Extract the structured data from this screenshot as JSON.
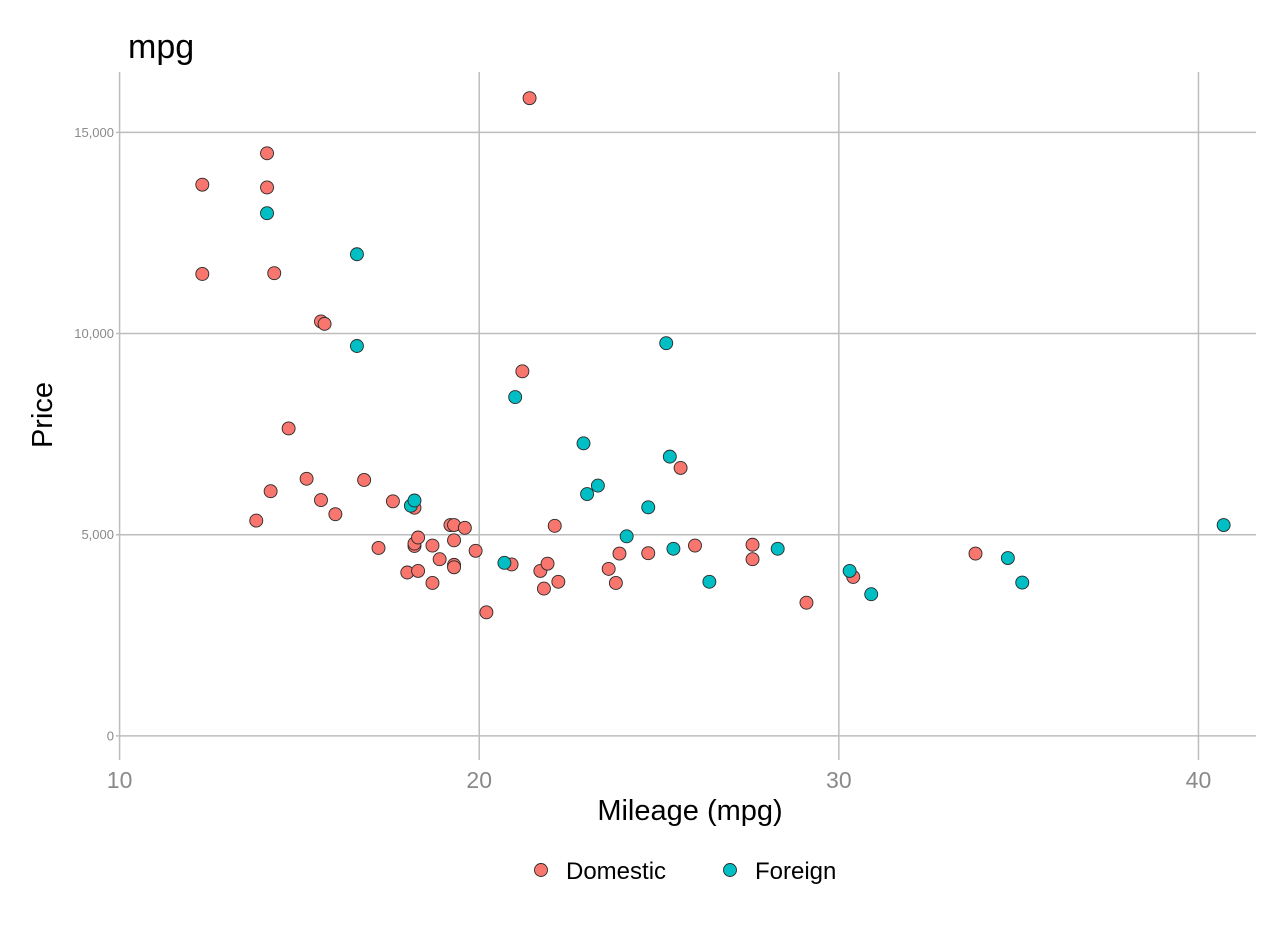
{
  "chart_data": {
    "type": "scatter",
    "title": "mpg",
    "xlabel": "Mileage (mpg)",
    "ylabel": "Price",
    "xlim": [
      9.9,
      41.6
    ],
    "ylim": [
      -600,
      16500
    ],
    "x_ticks": [
      10,
      20,
      30,
      40
    ],
    "x_tick_labels": [
      "10",
      "20",
      "30",
      "40"
    ],
    "y_ticks": [
      0,
      5000,
      10000,
      15000
    ],
    "y_tick_labels": [
      "0",
      "5,000",
      "10,000",
      "15,000"
    ],
    "grid": true,
    "legend_position": "bottom",
    "series": [
      {
        "name": "Domestic",
        "color": "#F8766D",
        "points": [
          [
            12.3,
            13700
          ],
          [
            12.3,
            11480
          ],
          [
            13.8,
            5350
          ],
          [
            14.1,
            14480
          ],
          [
            14.1,
            13630
          ],
          [
            14.2,
            6080
          ],
          [
            14.3,
            11500
          ],
          [
            14.7,
            7640
          ],
          [
            15.2,
            6390
          ],
          [
            15.6,
            5860
          ],
          [
            15.6,
            10300
          ],
          [
            15.7,
            10240
          ],
          [
            16.0,
            5510
          ],
          [
            16.8,
            6360
          ],
          [
            17.2,
            4670
          ],
          [
            17.6,
            5830
          ],
          [
            18.0,
            4060
          ],
          [
            18.2,
            5670
          ],
          [
            18.2,
            4720
          ],
          [
            18.2,
            4780
          ],
          [
            18.3,
            4930
          ],
          [
            18.3,
            4100
          ],
          [
            18.7,
            4730
          ],
          [
            18.7,
            3800
          ],
          [
            18.9,
            4390
          ],
          [
            19.2,
            5240
          ],
          [
            19.3,
            5240
          ],
          [
            19.3,
            4860
          ],
          [
            19.3,
            4250
          ],
          [
            19.3,
            4190
          ],
          [
            19.6,
            5170
          ],
          [
            19.9,
            4600
          ],
          [
            20.2,
            3070
          ],
          [
            20.9,
            4260
          ],
          [
            21.2,
            9060
          ],
          [
            21.4,
            15850
          ],
          [
            21.7,
            4100
          ],
          [
            21.8,
            3660
          ],
          [
            21.9,
            4280
          ],
          [
            22.1,
            5220
          ],
          [
            22.2,
            3830
          ],
          [
            23.6,
            4150
          ],
          [
            23.8,
            3800
          ],
          [
            23.9,
            4530
          ],
          [
            24.7,
            4540
          ],
          [
            25.6,
            6660
          ],
          [
            26.0,
            4730
          ],
          [
            27.6,
            4750
          ],
          [
            27.6,
            4390
          ],
          [
            29.1,
            3310
          ],
          [
            30.4,
            3950
          ],
          [
            33.8,
            4530
          ]
        ]
      },
      {
        "name": "Foreign",
        "color": "#00BFC4",
        "points": [
          [
            14.1,
            12990
          ],
          [
            16.6,
            11970
          ],
          [
            16.6,
            9690
          ],
          [
            18.1,
            5720
          ],
          [
            18.2,
            5850
          ],
          [
            20.7,
            4300
          ],
          [
            21.0,
            8420
          ],
          [
            22.9,
            7270
          ],
          [
            23.0,
            6010
          ],
          [
            23.3,
            6220
          ],
          [
            24.1,
            4960
          ],
          [
            24.7,
            5680
          ],
          [
            25.2,
            9760
          ],
          [
            25.3,
            6940
          ],
          [
            25.4,
            4650
          ],
          [
            26.4,
            3830
          ],
          [
            28.3,
            4650
          ],
          [
            30.3,
            4100
          ],
          [
            30.9,
            3520
          ],
          [
            34.7,
            4420
          ],
          [
            35.1,
            3810
          ],
          [
            40.7,
            5240
          ]
        ]
      }
    ]
  }
}
